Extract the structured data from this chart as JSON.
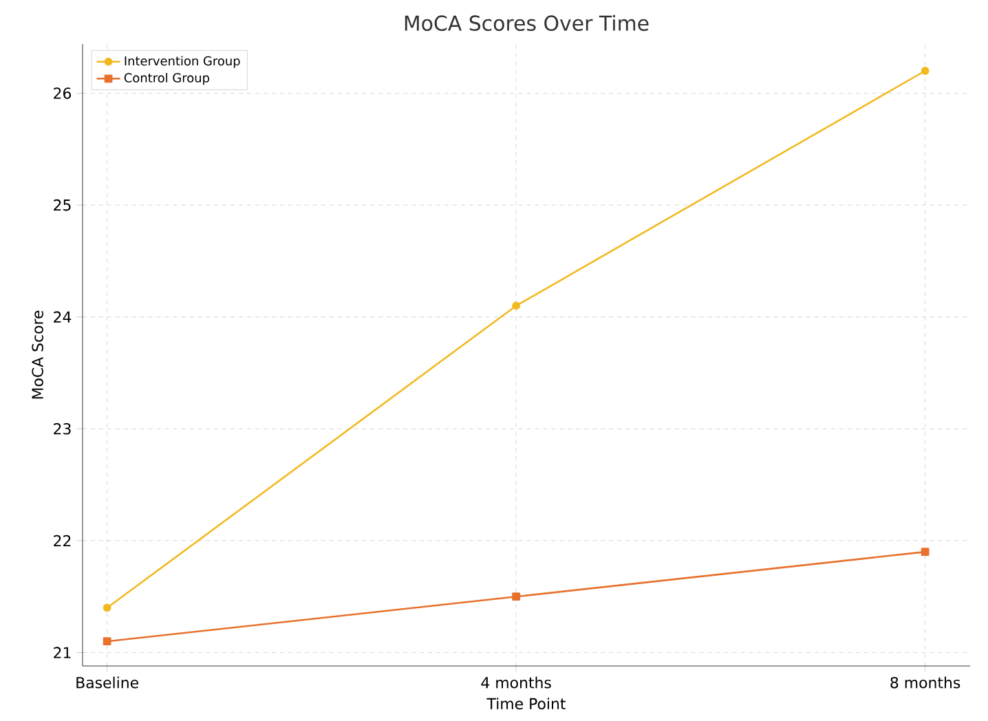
{
  "chart_data": {
    "type": "line",
    "title": "MoCA Scores Over Time",
    "xlabel": "Time Point",
    "ylabel": "MoCA Score",
    "categories": [
      "Baseline",
      "4 months",
      "8 months"
    ],
    "series": [
      {
        "name": "Intervention Group",
        "color": "#f2b91f",
        "values": [
          21.4,
          24.1,
          26.2
        ],
        "marker": "circle"
      },
      {
        "name": "Control Group",
        "color": "#e8712c",
        "values": [
          21.1,
          21.5,
          21.9
        ],
        "marker": "square"
      }
    ],
    "ylim": [
      20.88,
      26.44
    ],
    "yticks": [
      21,
      22,
      23,
      24,
      25,
      26
    ],
    "grid": true,
    "legend": "top left",
    "line_style": "solid"
  }
}
